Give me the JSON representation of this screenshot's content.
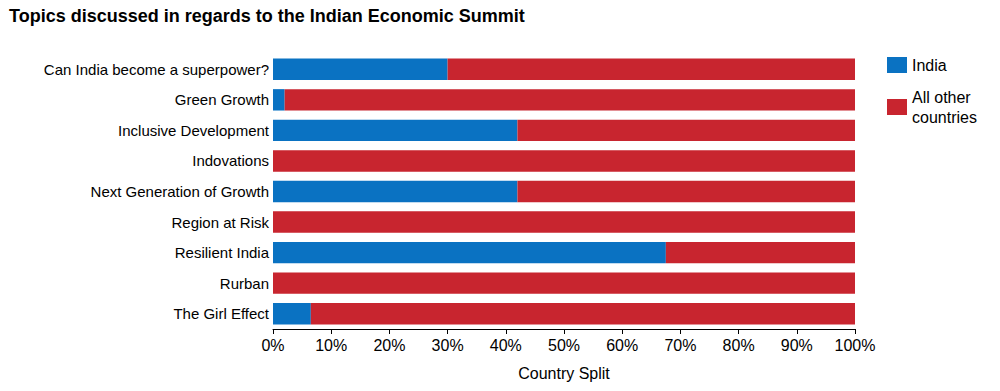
{
  "chart_data": {
    "type": "bar",
    "title": "Topics discussed in regards to the Indian Economic Summit",
    "orientation": "horizontal",
    "stacked": true,
    "grid": false,
    "legend": "right",
    "data_labels": false,
    "x_label": "Country Split",
    "categories": [
      "Can India become a superpower?",
      "Green Growth",
      "Inclusive Development",
      "Indovations",
      "Next Generation of Growth",
      "Region at Risk",
      "Resilient India",
      "Rurban",
      "The Girl Effect"
    ],
    "series": [
      {
        "name": "India",
        "color": "#0a72c2",
        "values": [
          30,
          2,
          42,
          0,
          42,
          0,
          67.5,
          0,
          6.5
        ]
      },
      {
        "name": "All other countries",
        "color": "#c8252f",
        "values": [
          70,
          98,
          58,
          100,
          58,
          100,
          32.5,
          100,
          93.5
        ]
      }
    ],
    "xlim": [
      0,
      100
    ],
    "xticks": [
      {
        "value": 0,
        "label": "0%"
      },
      {
        "value": 10,
        "label": "10%"
      },
      {
        "value": 20,
        "label": "20%"
      },
      {
        "value": 30,
        "label": "30%"
      },
      {
        "value": 40,
        "label": "40%"
      },
      {
        "value": 50,
        "label": "50%"
      },
      {
        "value": 60,
        "label": "60%"
      },
      {
        "value": 70,
        "label": "70%"
      },
      {
        "value": 80,
        "label": "80%"
      },
      {
        "value": 90,
        "label": "90%"
      },
      {
        "value": 100,
        "label": "100%"
      }
    ]
  }
}
